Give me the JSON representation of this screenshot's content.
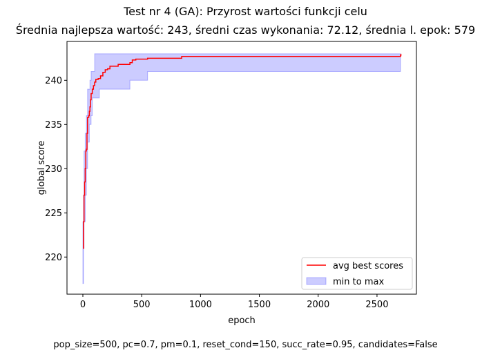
{
  "header": {
    "title": "Test nr 4 (GA): Przyrost wartości funkcji celu",
    "subtitle": "Średnia najlepsza wartość: 243, średni czas wykonania: 72.12, średnia l. epok: 579"
  },
  "footer": {
    "params": "pop_size=500, pc=0.7, pm=0.1, reset_cond=150, succ_rate=0.95, candidates=False"
  },
  "chart_data": {
    "type": "line",
    "title": "Test nr 4 (GA): Przyrost wartości funkcji celu",
    "subtitle": "Średnia najlepsza wartość: 243, średni czas wykonania: 72.12, średnia l. epok: 579",
    "xlabel": "epoch",
    "ylabel": "global score",
    "xlim": [
      -135,
      2835
    ],
    "ylim": [
      215.8,
      244.4
    ],
    "x_ticks": [
      0,
      500,
      1000,
      1500,
      2000,
      2500
    ],
    "y_ticks": [
      220,
      225,
      230,
      235,
      240
    ],
    "grid": false,
    "legend_position": "lower right",
    "series": [
      {
        "name": "avg best scores",
        "kind": "line",
        "color": "#ff0000",
        "points": [
          [
            0,
            221
          ],
          [
            5,
            224
          ],
          [
            10,
            227
          ],
          [
            15,
            228.5
          ],
          [
            20,
            230
          ],
          [
            25,
            232
          ],
          [
            30,
            232.2
          ],
          [
            35,
            234
          ],
          [
            40,
            235.8
          ],
          [
            50,
            236
          ],
          [
            55,
            236.5
          ],
          [
            60,
            237
          ],
          [
            65,
            237.8
          ],
          [
            70,
            238.5
          ],
          [
            80,
            239
          ],
          [
            90,
            239.4
          ],
          [
            100,
            239.8
          ],
          [
            110,
            240.1
          ],
          [
            130,
            240.2
          ],
          [
            150,
            240.5
          ],
          [
            170,
            240.9
          ],
          [
            190,
            241.2
          ],
          [
            210,
            241.3
          ],
          [
            230,
            241.6
          ],
          [
            300,
            241.8
          ],
          [
            400,
            242
          ],
          [
            420,
            242.3
          ],
          [
            450,
            242.4
          ],
          [
            550,
            242.5
          ],
          [
            840,
            242.7
          ],
          [
            2700,
            242.8
          ],
          [
            2703,
            243
          ]
        ]
      },
      {
        "name": "min to max",
        "kind": "band",
        "color": "#0000ff",
        "upper": [
          [
            0,
            224
          ],
          [
            5,
            227
          ],
          [
            10,
            232
          ],
          [
            20,
            234
          ],
          [
            30,
            236
          ],
          [
            40,
            239
          ],
          [
            60,
            240
          ],
          [
            70,
            241
          ],
          [
            100,
            243
          ],
          [
            2700,
            243
          ]
        ],
        "lower": [
          [
            0,
            217
          ],
          [
            5,
            221
          ],
          [
            10,
            224
          ],
          [
            20,
            227
          ],
          [
            30,
            230
          ],
          [
            40,
            233
          ],
          [
            55,
            235
          ],
          [
            70,
            236
          ],
          [
            80,
            238
          ],
          [
            140,
            239
          ],
          [
            400,
            240
          ],
          [
            550,
            241
          ],
          [
            2700,
            241
          ]
        ]
      }
    ]
  }
}
